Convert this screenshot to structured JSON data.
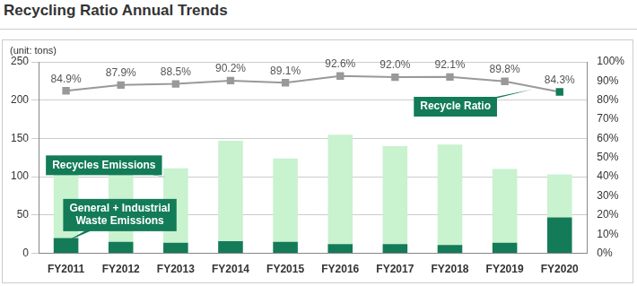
{
  "chart_data": {
    "type": "bar",
    "title": "Recycling Ratio Annual Trends",
    "y_label": "(unit: tons)",
    "stacked": true,
    "grid": true,
    "legend": false,
    "categories": [
      "FY2011",
      "FY2012",
      "FY2013",
      "FY2014",
      "FY2015",
      "FY2016",
      "FY2017",
      "FY2018",
      "FY2019",
      "FY2020"
    ],
    "ylim": [
      0,
      250
    ],
    "yticks": [
      0,
      50,
      100,
      150,
      200,
      250
    ],
    "y2lim": [
      0,
      100
    ],
    "y2ticks": [
      {
        "value": 0,
        "label": "0%"
      },
      {
        "value": 10,
        "label": "10%"
      },
      {
        "value": 20,
        "label": "20%"
      },
      {
        "value": 30,
        "label": "30%"
      },
      {
        "value": 40,
        "label": "40%"
      },
      {
        "value": 50,
        "label": "50%"
      },
      {
        "value": 60,
        "label": "60%"
      },
      {
        "value": 70,
        "label": "70%"
      },
      {
        "value": 80,
        "label": "80%"
      },
      {
        "value": 90,
        "label": "90%"
      },
      {
        "value": 100,
        "label": "100%"
      }
    ],
    "series": [
      {
        "name": "General + Industrial Waste Emissions",
        "type": "bar",
        "color": "#137b58",
        "values": [
          20,
          15,
          14,
          16,
          15,
          12,
          12,
          11,
          14,
          47
        ]
      },
      {
        "name": "Recycles Emissions",
        "type": "bar",
        "color": "#c9f2cf",
        "values": [
          90,
          93,
          97,
          131,
          109,
          143,
          128,
          131,
          96,
          56
        ]
      },
      {
        "name": "Recycle Ratio",
        "type": "line",
        "axis": "y2",
        "color": "#999999",
        "marker": "square",
        "colors": [
          "#999999",
          "#999999",
          "#999999",
          "#999999",
          "#999999",
          "#999999",
          "#999999",
          "#999999",
          "#999999",
          "#137b58"
        ],
        "data_labels": true,
        "values": [
          84.9,
          87.9,
          88.5,
          90.2,
          89.1,
          92.6,
          92.0,
          92.1,
          89.8,
          84.3
        ],
        "value_labels": [
          "84.9%",
          "87.9%",
          "88.5%",
          "90.2%",
          "89.1%",
          "92.6%",
          "92.0%",
          "92.1%",
          "89.8%",
          "84.3%"
        ]
      }
    ]
  }
}
